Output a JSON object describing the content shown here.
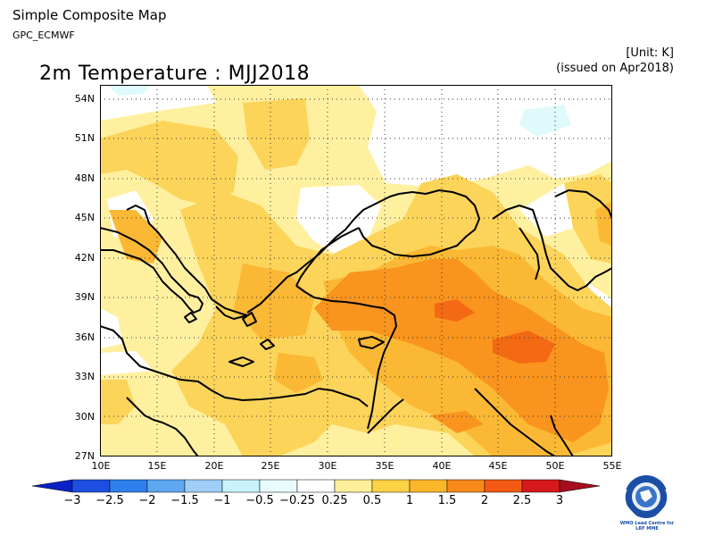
{
  "header": {
    "title": "Simple Composite Map",
    "subtitle": "GPC_ECMWF",
    "unit": "[Unit: K]",
    "issued": "(issued on Apr2018)"
  },
  "map": {
    "title": "2m Temperature : MJJ2018",
    "lat_labels": [
      "54N",
      "51N",
      "48N",
      "45N",
      "42N",
      "39N",
      "36N",
      "33N",
      "30N",
      "27N"
    ],
    "lon_labels": [
      "10E",
      "15E",
      "20E",
      "25E",
      "30E",
      "35E",
      "40E",
      "45E",
      "50E",
      "55E"
    ],
    "lat_range": [
      27,
      55
    ],
    "lon_range": [
      10,
      55
    ],
    "grid": "dotted"
  },
  "colorbar": {
    "labels": [
      "−3",
      "−2.5",
      "−2",
      "−1.5",
      "−1",
      "−0.5",
      "−0.25",
      "0.25",
      "0.5",
      "1",
      "1.5",
      "2",
      "2.5",
      "3"
    ],
    "colors": [
      "#0a21c4",
      "#1e4fe0",
      "#2f80ec",
      "#5ea8f2",
      "#9fcff6",
      "#e8fbfd",
      "#ffffff",
      "#ffef9a",
      "#fdd247",
      "#fbb62a",
      "#f98a1a",
      "#f35a13",
      "#d6191a",
      "#a40e1e"
    ]
  },
  "logo": {
    "caption_line1": "WMO Lead Centre for",
    "caption_line2": "LRF MME"
  },
  "colors": {
    "c025": "#fff0a0",
    "c05": "#fcd45a",
    "c1": "#fbb834",
    "c15": "#f9941e",
    "c2": "#f46914",
    "neg": "#dffafc"
  }
}
